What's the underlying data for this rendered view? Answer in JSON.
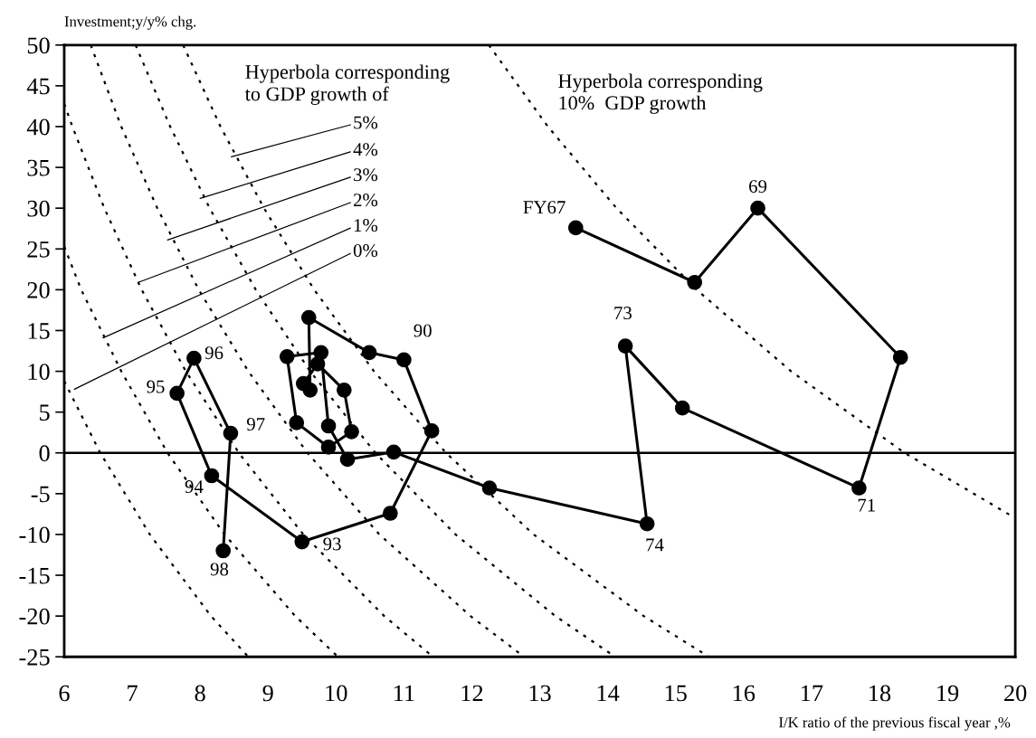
{
  "chart_data": {
    "type": "line",
    "xlabel": "I/K ratio of the previous fiscal year ,%",
    "ylabel": "Investment;y/y% chg.",
    "xlim": [
      6,
      20
    ],
    "ylim": [
      -25,
      50
    ],
    "xticks": [
      6,
      7,
      8,
      9,
      10,
      11,
      12,
      13,
      14,
      15,
      16,
      17,
      18,
      19,
      20
    ],
    "yticks": [
      50,
      45,
      40,
      35,
      30,
      25,
      20,
      15,
      10,
      5,
      0,
      -5,
      -10,
      -15,
      -20,
      -25
    ],
    "grid": false,
    "series": [
      {
        "color": "#000000",
        "line_style": "dotted",
        "marker": "none",
        "x": [
          6,
          6.53,
          7.26,
          8.16,
          8.71
        ],
        "values": [
          8.8,
          0,
          -10,
          -20,
          -25
        ]
      },
      {
        "color": "#000000",
        "line_style": "dotted",
        "marker": "none",
        "x": [
          6,
          6.25,
          6.84,
          7.52,
          8.36,
          9.4,
          10.03
        ],
        "values": [
          25.3,
          20,
          10,
          0,
          -10,
          -20,
          -25
        ]
      },
      {
        "color": "#000000",
        "line_style": "dotted",
        "marker": "none",
        "x": [
          6,
          6.12,
          6.59,
          7.14,
          7.79,
          8.57,
          9.52,
          10.71,
          11.43
        ],
        "values": [
          42.8,
          40,
          30,
          20,
          10,
          0,
          -10,
          -20,
          -25
        ]
      },
      {
        "color": "#000000",
        "line_style": "dotted",
        "marker": "none",
        "x": [
          6.39,
          6.84,
          7.37,
          7.98,
          8.71,
          9.58,
          10.64,
          11.98,
          12.77
        ],
        "values": [
          50,
          40,
          30,
          20,
          10,
          0,
          -10,
          -20,
          -25
        ]
      },
      {
        "color": "#000000",
        "line_style": "dotted",
        "marker": "none",
        "x": [
          7.05,
          7.56,
          8.14,
          8.82,
          9.62,
          10.58,
          11.76,
          13.23,
          14.11
        ],
        "values": [
          50,
          40,
          30,
          20,
          10,
          0,
          -10,
          -20,
          -25
        ]
      },
      {
        "color": "#000000",
        "line_style": "dotted",
        "marker": "none",
        "x": [
          7.75,
          8.3,
          8.94,
          9.68,
          10.56,
          11.62,
          12.91,
          14.53,
          15.49
        ],
        "values": [
          50,
          40,
          30,
          20,
          10,
          0,
          -10,
          -20,
          -25
        ]
      },
      {
        "color": "#000000",
        "line_style": "dotted",
        "marker": "none",
        "x": [
          12.25,
          13.12,
          14.13,
          15.31,
          16.7,
          18.37,
          20
        ],
        "values": [
          50,
          40,
          30,
          20,
          10,
          0,
          -8
        ]
      },
      {
        "color": "#000000",
        "line_style": "solid",
        "marker": "circle",
        "x": [
          13.53,
          15.28,
          16.21,
          18.31,
          17.7,
          15.1,
          14.26,
          14.58,
          12.26,
          10.85,
          10.17,
          9.89,
          9.78,
          9.28,
          9.42,
          9.89,
          10.23,
          10.12,
          9.73,
          9.52,
          9.62,
          9.6,
          10.49,
          11.0,
          11.41,
          10.8,
          9.5,
          8.17,
          7.66,
          7.91,
          8.45,
          8.34
        ],
        "values": [
          27.6,
          20.9,
          30.0,
          11.7,
          -4.3,
          5.5,
          13.1,
          -8.7,
          -4.3,
          0.1,
          -0.8,
          3.3,
          12.3,
          11.8,
          3.7,
          0.7,
          2.6,
          7.7,
          10.9,
          8.5,
          7.7,
          16.6,
          12.3,
          11.4,
          2.7,
          -7.4,
          -10.9,
          -2.8,
          7.3,
          11.6,
          2.4,
          -12.0
        ]
      }
    ],
    "ref_lines": [
      {
        "axis": "y",
        "value": 0,
        "color": "#000000",
        "line_style": "solid"
      }
    ],
    "annotations": [
      "Hyperbola corresponding\nto GDP growth of",
      "Hyperbola corresponding\n10%  GDP growth",
      {
        "text": "5%",
        "x": 8.46,
        "y": 36.3
      },
      {
        "text": "4%",
        "x": 8.0,
        "y": 31.2
      },
      {
        "text": "3%",
        "x": 7.52,
        "y": 26.1
      },
      {
        "text": "2%",
        "x": 7.09,
        "y": 20.9
      },
      {
        "text": "1%",
        "x": 6.57,
        "y": 14.1
      },
      {
        "text": "0%",
        "x": 6.15,
        "y": 7.8
      },
      {
        "text": "FY67",
        "x": 13.53,
        "y": 27.6
      },
      {
        "text": "69",
        "x": 16.21,
        "y": 30.0
      },
      {
        "text": "71",
        "x": 17.7,
        "y": -4.3
      },
      {
        "text": "73",
        "x": 14.26,
        "y": 13.1
      },
      {
        "text": "74",
        "x": 14.58,
        "y": -8.7
      },
      {
        "text": "90",
        "x": 11.0,
        "y": 11.4
      },
      {
        "text": "93",
        "x": 9.5,
        "y": -10.9
      },
      {
        "text": "94",
        "x": 8.17,
        "y": -2.8
      },
      {
        "text": "95",
        "x": 7.66,
        "y": 7.3
      },
      {
        "text": "96",
        "x": 7.91,
        "y": 11.6
      },
      {
        "text": "97",
        "x": 8.45,
        "y": 2.4
      },
      {
        "text": "98",
        "x": 8.34,
        "y": -12.0
      }
    ]
  }
}
